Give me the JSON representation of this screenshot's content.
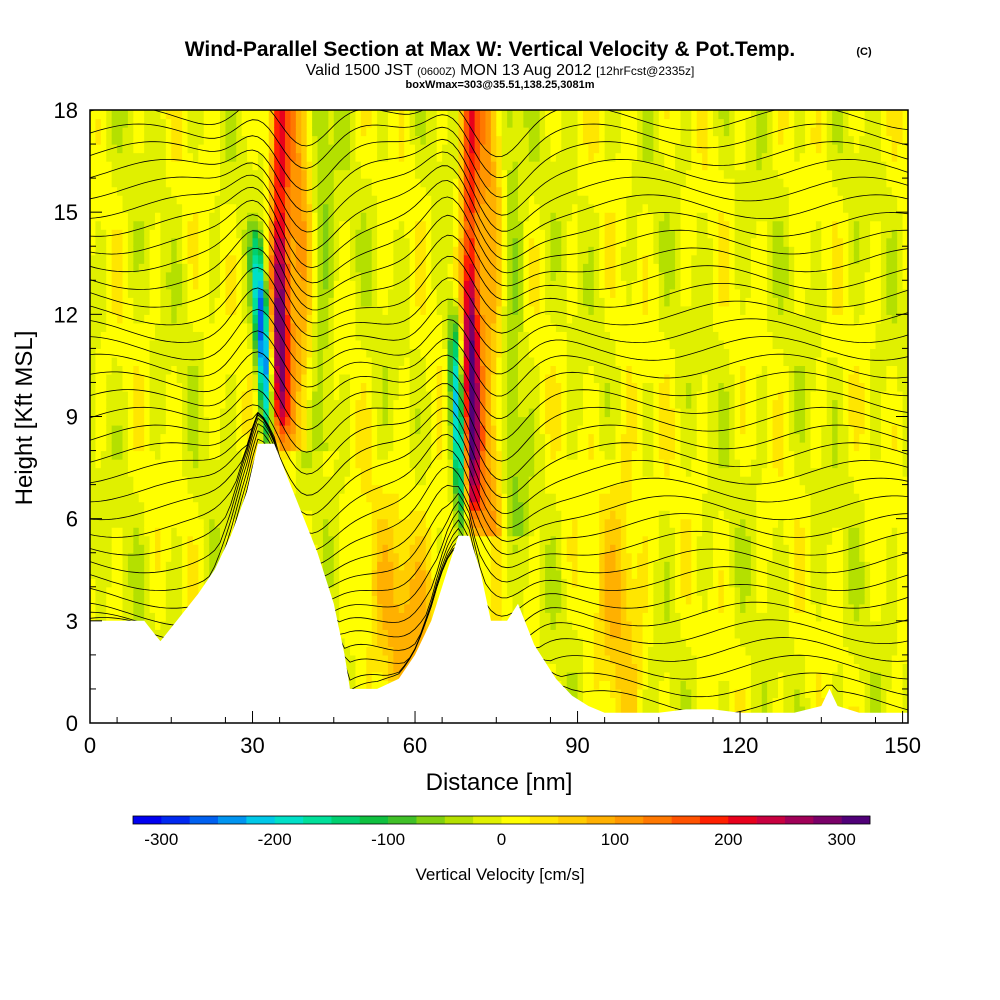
{
  "title": {
    "main": "Wind-Parallel Section at Max W: Vertical Velocity & Pot.Temp.",
    "copyright": "(C)",
    "valid_a": "Valid 1500 JST",
    "valid_b": "(0600Z)",
    "valid_c": "MON 13 Aug 2012",
    "valid_d": "[12hrFcst@2335z]",
    "box": "boxWmax=303@35.51,138.25,3081m"
  },
  "chart_data": {
    "type": "heatmap",
    "xlabel": "Distance [nm]",
    "ylabel": "Height [Kft MSL]",
    "xlim": [
      0,
      151
    ],
    "ylim": [
      0,
      18
    ],
    "x_ticks": [
      0,
      30,
      60,
      90,
      120,
      150
    ],
    "y_ticks": [
      0,
      3,
      6,
      9,
      12,
      15,
      18
    ],
    "grid": false,
    "terrain_kft": [
      {
        "x": 0,
        "h": 3.0
      },
      {
        "x": 5,
        "h": 3.0
      },
      {
        "x": 10,
        "h": 3.0
      },
      {
        "x": 13,
        "h": 2.4
      },
      {
        "x": 17,
        "h": 3.2
      },
      {
        "x": 20,
        "h": 3.8
      },
      {
        "x": 23,
        "h": 4.5
      },
      {
        "x": 26,
        "h": 5.5
      },
      {
        "x": 29,
        "h": 6.8
      },
      {
        "x": 31,
        "h": 8.2
      },
      {
        "x": 34,
        "h": 8.2
      },
      {
        "x": 36,
        "h": 7.4
      },
      {
        "x": 39,
        "h": 6.2
      },
      {
        "x": 42,
        "h": 5.0
      },
      {
        "x": 45,
        "h": 3.5
      },
      {
        "x": 47,
        "h": 2.0
      },
      {
        "x": 48,
        "h": 1.0
      },
      {
        "x": 53,
        "h": 1.0
      },
      {
        "x": 57,
        "h": 1.3
      },
      {
        "x": 60,
        "h": 2.0
      },
      {
        "x": 63,
        "h": 3.0
      },
      {
        "x": 66,
        "h": 4.5
      },
      {
        "x": 68,
        "h": 5.5
      },
      {
        "x": 70,
        "h": 5.5
      },
      {
        "x": 72,
        "h": 4.5
      },
      {
        "x": 74,
        "h": 3.0
      },
      {
        "x": 77,
        "h": 3.0
      },
      {
        "x": 79,
        "h": 3.5
      },
      {
        "x": 82,
        "h": 2.3
      },
      {
        "x": 86,
        "h": 1.3
      },
      {
        "x": 89,
        "h": 0.8
      },
      {
        "x": 92,
        "h": 0.5
      },
      {
        "x": 95,
        "h": 0.3
      },
      {
        "x": 100,
        "h": 0.3
      },
      {
        "x": 105,
        "h": 0.3
      },
      {
        "x": 110,
        "h": 0.4
      },
      {
        "x": 115,
        "h": 0.4
      },
      {
        "x": 120,
        "h": 0.3
      },
      {
        "x": 125,
        "h": 0.3
      },
      {
        "x": 130,
        "h": 0.3
      },
      {
        "x": 135,
        "h": 0.5
      },
      {
        "x": 136.5,
        "h": 1.0
      },
      {
        "x": 138,
        "h": 0.5
      },
      {
        "x": 142,
        "h": 0.3
      },
      {
        "x": 151,
        "h": 0.3
      }
    ],
    "updrafts": [
      {
        "x": 35.0,
        "x_top": 35.0,
        "y0": 8.0,
        "y1": 18.0,
        "peak_cms": 303,
        "width_nm": 1.6
      },
      {
        "x": 70.5,
        "x_top": 70.0,
        "y0": 5.5,
        "y1": 18.0,
        "peak_cms": 300,
        "width_nm": 1.6
      }
    ],
    "downdrafts": [
      {
        "x_bottom": 33.0,
        "x_top": 30.5,
        "y0": 8.3,
        "y1": 15.0,
        "peak_cms": -280,
        "width_nm": 1.6
      },
      {
        "x_bottom": 69.0,
        "x_top": 67.0,
        "y0": 5.0,
        "y1": 13.0,
        "peak_cms": -250,
        "width_nm": 1.6
      }
    ],
    "colorbar": {
      "title": "Vertical Velocity [cm/s]",
      "ticks": [
        -300,
        -200,
        -100,
        0,
        100,
        200,
        300
      ],
      "range": [
        -325,
        325
      ],
      "colors": [
        "#0000f0",
        "#0028f0",
        "#0060f0",
        "#0094f0",
        "#00c8e8",
        "#00e0c8",
        "#00e09a",
        "#00d070",
        "#10c040",
        "#40c028",
        "#80d010",
        "#b4e000",
        "#e0f000",
        "#ffff00",
        "#ffe600",
        "#ffcc00",
        "#ffb000",
        "#ff9600",
        "#ff7800",
        "#ff5200",
        "#ff2000",
        "#e8001c",
        "#c80040",
        "#a00058",
        "#7a0068",
        "#500078"
      ]
    }
  }
}
